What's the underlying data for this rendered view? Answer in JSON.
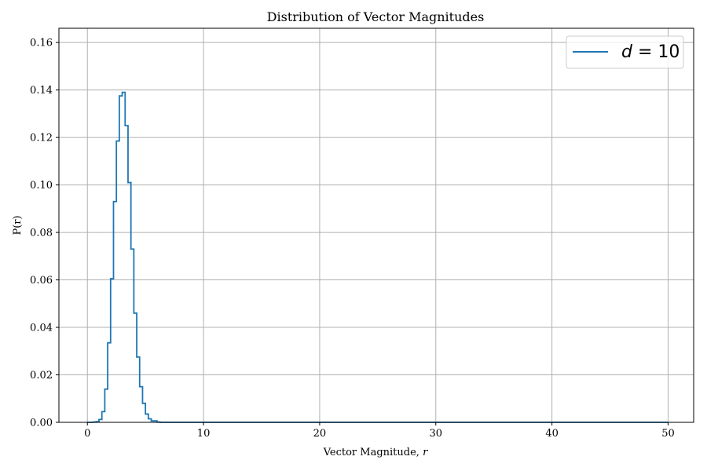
{
  "chart_data": {
    "type": "line",
    "style": "step-histogram",
    "title": "Distribution of Vector Magnitudes",
    "xlabel_text": "Vector Magnitude,",
    "xlabel_var": "r",
    "ylabel": "P(r)",
    "xlim": [
      -2.45,
      52.2
    ],
    "ylim": [
      0,
      0.166
    ],
    "xticks": [
      0,
      10,
      20,
      30,
      40,
      50
    ],
    "yticks": [
      0.0,
      0.02,
      0.04,
      0.06,
      0.08,
      0.1,
      0.12,
      0.14,
      0.16
    ],
    "grid": true,
    "legend": {
      "position": "top-right",
      "entries": [
        {
          "var": "d",
          "eq": " = 10"
        }
      ]
    },
    "series": [
      {
        "name": "d = 10",
        "color": "#1f77b4",
        "bin_width": 0.25,
        "x_start": 0,
        "x_end": 50,
        "values": [
          0.0,
          0.0,
          0.0001,
          0.0003,
          0.0012,
          0.0045,
          0.014,
          0.0335,
          0.0605,
          0.093,
          0.1185,
          0.1375,
          0.139,
          0.125,
          0.101,
          0.073,
          0.046,
          0.0275,
          0.015,
          0.008,
          0.0035,
          0.0015,
          0.0006,
          0.0006,
          0.0001
        ]
      }
    ]
  }
}
